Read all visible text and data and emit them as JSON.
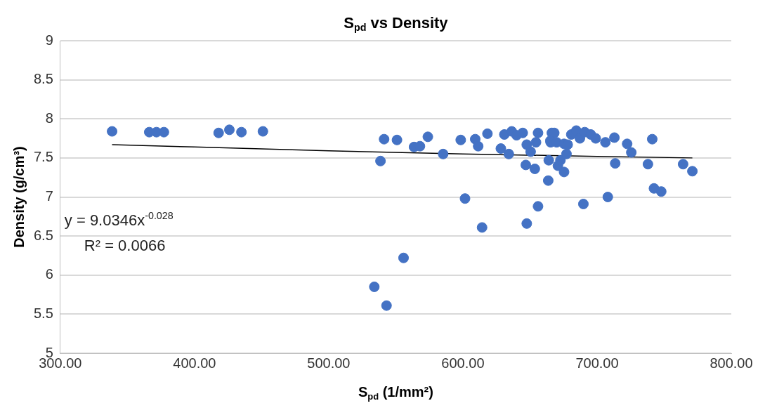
{
  "chart_data": {
    "type": "scatter",
    "title": "S$_{pd}$ vs Density",
    "xlabel": "S$_{pd}$ (1/mm²)",
    "ylabel": "Density (g/cm³)",
    "annotations": [
      "y = 9.0346x$^{-0.028}$",
      "R² = 0.0066"
    ],
    "series": [
      {
        "color": "#4472c4",
        "marker": "circle",
        "x": [
          338.6,
          366.3,
          371.7,
          377.2,
          418,
          426,
          435,
          451,
          541.3,
          538.6,
          550.9,
          563.6,
          568,
          573.9,
          585.3,
          598.4,
          601.6,
          609.2,
          611.4,
          618.3,
          614.3,
          630.9,
          628.3,
          634.2,
          636.4,
          640,
          644.6,
          646.9,
          647.6,
          650.5,
          653.6,
          656,
          654.5,
          647.6,
          656,
          663.6,
          664,
          666.3,
          665.4,
          555.8,
          534,
          543.1,
          668.1,
          665.2,
          669.9,
          675.4,
          678.1,
          677.2,
          670.8,
          675.4,
          672.7,
          680.8,
          684.5,
          687.2,
          690.8,
          695.3,
          699,
          689.8,
          706.2,
          712.9,
          713.5,
          708,
          722.4,
          725.5,
          737.9,
          741.1,
          742.4,
          747.8,
          764.1,
          771
        ],
        "values": [
          7.84,
          7.83,
          7.83,
          7.83,
          7.82,
          7.86,
          7.83,
          7.84,
          7.74,
          7.46,
          7.73,
          7.64,
          7.65,
          7.77,
          7.55,
          7.73,
          6.98,
          7.74,
          7.65,
          7.81,
          6.61,
          7.8,
          7.62,
          7.55,
          7.84,
          7.79,
          7.82,
          7.41,
          7.67,
          7.58,
          7.36,
          7.82,
          7.7,
          6.66,
          6.88,
          7.21,
          7.47,
          7.82,
          7.7,
          6.22,
          5.85,
          5.61,
          7.82,
          7.72,
          7.7,
          7.68,
          7.67,
          7.55,
          7.4,
          7.32,
          7.47,
          7.8,
          7.85,
          7.75,
          7.83,
          7.8,
          7.75,
          6.91,
          7.7,
          7.76,
          7.43,
          7,
          7.68,
          7.57,
          7.42,
          7.74,
          7.11,
          7.07,
          7.42,
          7.33
        ]
      },
      {
        "type": "line",
        "color": "#000000",
        "marker": "none",
        "x": [
          338.6,
          400,
          500,
          600,
          700,
          771
        ],
        "values": [
          7.67,
          7.64,
          7.59,
          7.55,
          7.52,
          7.5
        ]
      }
    ],
    "xlim": [
      300,
      800
    ],
    "xticks": [
      {
        "value": 300,
        "label": "300.00"
      },
      {
        "value": 400,
        "label": "400.00"
      },
      {
        "value": 500,
        "label": "500.00"
      },
      {
        "value": 600,
        "label": "600.00"
      },
      {
        "value": 700,
        "label": "700.00"
      },
      {
        "value": 800,
        "label": "800.00"
      }
    ],
    "ylim": [
      5,
      9
    ],
    "yticks": [
      5,
      5.5,
      6,
      6.5,
      7,
      7.5,
      8,
      8.5,
      9
    ],
    "grid": "y",
    "legend": false
  }
}
